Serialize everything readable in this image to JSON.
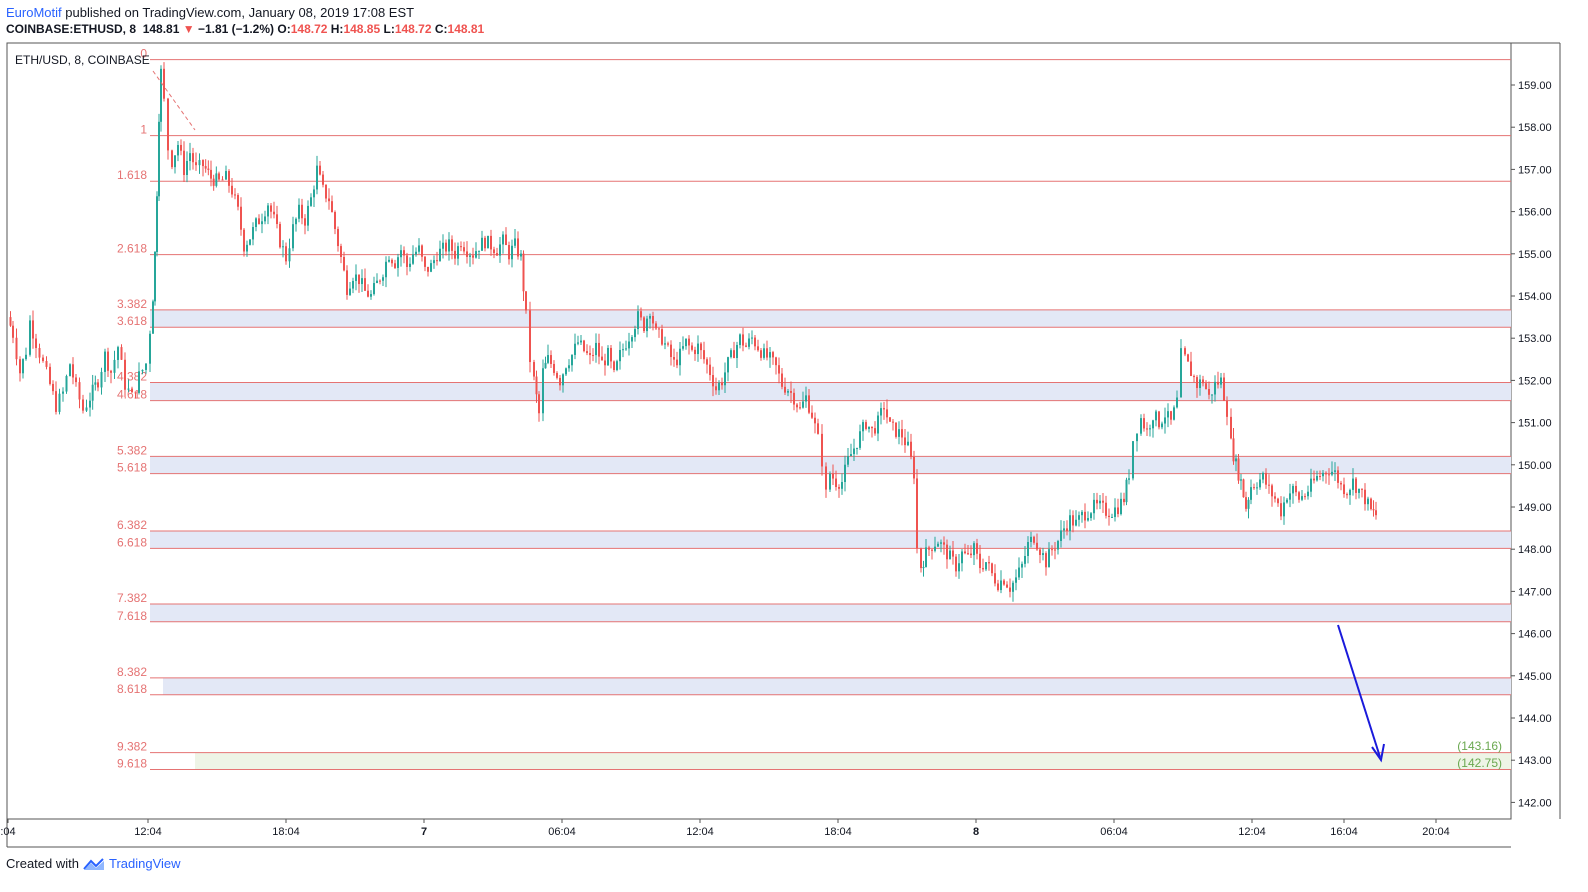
{
  "header": {
    "author": "EuroMotif",
    "published_text": "published on TradingView.com, January 08, 2019 17:08 EST",
    "symbol": "COINBASE:ETHUSD, 8",
    "last_price": "148.81",
    "change_arrow": "▼",
    "change": "−1.81 (−1.2%)",
    "o_label": "O:",
    "o_value": "148.72",
    "h_label": "H:",
    "h_value": "148.85",
    "l_label": "L:",
    "l_value": "148.72",
    "c_label": "C:",
    "c_value": "148.81"
  },
  "footer": {
    "created_with": "Created with",
    "brand": "TradingView"
  },
  "chart_data": {
    "type": "candlestick",
    "legend": "ETH/USD, 8, COINBASE",
    "ylim": [
      141.8,
      159.8
    ],
    "y_ticks": [
      "159.00",
      "158.00",
      "157.00",
      "156.00",
      "155.00",
      "154.00",
      "153.00",
      "152.00",
      "151.00",
      "150.00",
      "149.00",
      "148.00",
      "147.00",
      "146.00",
      "145.00",
      "144.00",
      "143.00",
      "142.00"
    ],
    "x_ticks": [
      ":04",
      "12:04",
      "18:04",
      "7",
      "06:04",
      "12:04",
      "18:04",
      "8",
      "06:04",
      "12:04",
      "16:04",
      "20:04"
    ],
    "fib_levels": [
      {
        "label": "0",
        "value": 159.6
      },
      {
        "label": "1",
        "value": 157.8
      },
      {
        "label": "1.618",
        "value": 156.72
      },
      {
        "label": "2.618",
        "value": 154.98
      },
      {
        "label": "3.382",
        "value": 153.67
      },
      {
        "label": "3.618",
        "value": 153.26
      },
      {
        "label": "4.382",
        "value": 151.95
      },
      {
        "label": "4.618",
        "value": 151.52
      },
      {
        "label": "5.382",
        "value": 150.2
      },
      {
        "label": "5.618",
        "value": 149.79
      },
      {
        "label": "6.382",
        "value": 148.43
      },
      {
        "label": "6.618",
        "value": 148.02
      },
      {
        "label": "7.382",
        "value": 146.7
      },
      {
        "label": "7.618",
        "value": 146.28
      },
      {
        "label": "8.382",
        "value": 144.95
      },
      {
        "label": "8.618",
        "value": 144.55
      },
      {
        "label": "9.382",
        "value": 143.18
      },
      {
        "label": "9.618",
        "value": 142.78
      }
    ],
    "target_labels": [
      "(143.16)",
      "(142.75)"
    ],
    "colors": {
      "up": "#26a69a",
      "down": "#ef5350",
      "fib": "#e57373",
      "zone": "#e3e8f6",
      "target_zone": "#eef4e6",
      "arrow": "#1a1adb",
      "target_text": "#6aa84f"
    },
    "path_points": [
      [
        0,
        153.5
      ],
      [
        5,
        153.1
      ],
      [
        12,
        152.2
      ],
      [
        18,
        152.7
      ],
      [
        22,
        153.4
      ],
      [
        28,
        152.9
      ],
      [
        35,
        152.4
      ],
      [
        42,
        151.9
      ],
      [
        48,
        151.4
      ],
      [
        55,
        151.7
      ],
      [
        62,
        152.4
      ],
      [
        68,
        151.8
      ],
      [
        75,
        151.3
      ],
      [
        82,
        151.6
      ],
      [
        90,
        152.0
      ],
      [
        97,
        152.6
      ],
      [
        103,
        152.2
      ],
      [
        110,
        152.8
      ],
      [
        117,
        151.9
      ],
      [
        124,
        151.6
      ],
      [
        131,
        152.1
      ],
      [
        138,
        152.4
      ],
      [
        142,
        153.2
      ],
      [
        145,
        154.0
      ],
      [
        147,
        155.0
      ],
      [
        149,
        156.5
      ],
      [
        151,
        158.3
      ],
      [
        153,
        159.3
      ],
      [
        156,
        158.6
      ],
      [
        160,
        157.5
      ],
      [
        164,
        157.2
      ],
      [
        170,
        157.6
      ],
      [
        176,
        157.0
      ],
      [
        182,
        157.4
      ],
      [
        188,
        157.0
      ],
      [
        195,
        157.1
      ],
      [
        203,
        156.8
      ],
      [
        211,
        156.7
      ],
      [
        218,
        156.8
      ],
      [
        224,
        156.5
      ],
      [
        230,
        156.0
      ],
      [
        236,
        155.2
      ],
      [
        242,
        155.4
      ],
      [
        248,
        155.7
      ],
      [
        254,
        155.9
      ],
      [
        260,
        156.2
      ],
      [
        266,
        155.8
      ],
      [
        272,
        155.3
      ],
      [
        278,
        154.9
      ],
      [
        285,
        155.6
      ],
      [
        291,
        156.0
      ],
      [
        297,
        155.8
      ],
      [
        303,
        156.3
      ],
      [
        309,
        157.0
      ],
      [
        315,
        156.5
      ],
      [
        321,
        156.3
      ],
      [
        327,
        155.6
      ],
      [
        333,
        154.9
      ],
      [
        339,
        154.2
      ],
      [
        345,
        154.5
      ],
      [
        351,
        154.4
      ],
      [
        357,
        154.1
      ],
      [
        363,
        154.0
      ],
      [
        369,
        154.3
      ],
      [
        375,
        154.6
      ],
      [
        381,
        155.0
      ],
      [
        387,
        154.8
      ],
      [
        393,
        155.1
      ],
      [
        399,
        154.7
      ],
      [
        405,
        155.0
      ],
      [
        411,
        155.1
      ],
      [
        417,
        154.6
      ],
      [
        423,
        154.7
      ],
      [
        429,
        155.0
      ],
      [
        435,
        155.1
      ],
      [
        441,
        155.2
      ],
      [
        447,
        155.0
      ],
      [
        453,
        155.3
      ],
      [
        459,
        155.1
      ],
      [
        465,
        155.0
      ],
      [
        471,
        155.2
      ],
      [
        477,
        155.3
      ],
      [
        483,
        155.2
      ],
      [
        489,
        155.1
      ],
      [
        495,
        155.3
      ],
      [
        501,
        155.0
      ],
      [
        507,
        155.2
      ],
      [
        513,
        154.9
      ],
      [
        518,
        153.5
      ],
      [
        522,
        152.5
      ],
      [
        526,
        152.0
      ],
      [
        531,
        151.2
      ],
      [
        535,
        152.2
      ],
      [
        540,
        152.5
      ],
      [
        546,
        152.3
      ],
      [
        552,
        152.0
      ],
      [
        558,
        152.4
      ],
      [
        564,
        152.6
      ],
      [
        570,
        152.9
      ],
      [
        576,
        152.7
      ],
      [
        582,
        152.5
      ],
      [
        588,
        152.8
      ],
      [
        594,
        152.4
      ],
      [
        600,
        152.6
      ],
      [
        606,
        152.1
      ],
      [
        612,
        152.6
      ],
      [
        618,
        152.9
      ],
      [
        624,
        153.2
      ],
      [
        630,
        153.5
      ],
      [
        636,
        153.3
      ],
      [
        642,
        153.7
      ],
      [
        648,
        153.1
      ],
      [
        654,
        153.0
      ],
      [
        660,
        152.7
      ],
      [
        666,
        152.4
      ],
      [
        672,
        152.6
      ],
      [
        678,
        152.9
      ],
      [
        684,
        152.7
      ],
      [
        690,
        152.8
      ],
      [
        696,
        152.5
      ],
      [
        702,
        152.2
      ],
      [
        708,
        151.8
      ],
      [
        714,
        152.0
      ],
      [
        720,
        152.4
      ],
      [
        726,
        152.7
      ],
      [
        732,
        153.0
      ],
      [
        738,
        152.8
      ],
      [
        744,
        153.0
      ],
      [
        750,
        152.8
      ],
      [
        756,
        152.6
      ],
      [
        762,
        152.5
      ],
      [
        768,
        152.3
      ],
      [
        774,
        151.9
      ],
      [
        780,
        151.8
      ],
      [
        786,
        151.6
      ],
      [
        792,
        151.3
      ],
      [
        798,
        151.6
      ],
      [
        804,
        151.2
      ],
      [
        810,
        150.6
      ],
      [
        814,
        150.1
      ],
      [
        818,
        149.3
      ],
      [
        822,
        149.8
      ],
      [
        828,
        149.6
      ],
      [
        834,
        149.6
      ],
      [
        840,
        150.1
      ],
      [
        846,
        150.4
      ],
      [
        852,
        150.7
      ],
      [
        858,
        151.0
      ],
      [
        864,
        150.8
      ],
      [
        870,
        151.0
      ],
      [
        876,
        151.4
      ],
      [
        882,
        150.9
      ],
      [
        888,
        150.8
      ],
      [
        894,
        150.7
      ],
      [
        900,
        150.4
      ],
      [
        906,
        149.8
      ],
      [
        909,
        148.0
      ],
      [
        913,
        147.6
      ],
      [
        918,
        147.9
      ],
      [
        924,
        148.1
      ],
      [
        930,
        148.2
      ],
      [
        936,
        148.0
      ],
      [
        942,
        147.8
      ],
      [
        948,
        147.6
      ],
      [
        954,
        147.9
      ],
      [
        960,
        147.8
      ],
      [
        966,
        148.0
      ],
      [
        972,
        147.6
      ],
      [
        978,
        147.7
      ],
      [
        984,
        147.4
      ],
      [
        990,
        147.2
      ],
      [
        996,
        147.3
      ],
      [
        1002,
        147.1
      ],
      [
        1008,
        147.3
      ],
      [
        1014,
        147.6
      ],
      [
        1020,
        148.1
      ],
      [
        1026,
        148.3
      ],
      [
        1032,
        148.0
      ],
      [
        1038,
        147.7
      ],
      [
        1044,
        148.0
      ],
      [
        1050,
        148.2
      ],
      [
        1056,
        148.5
      ],
      [
        1062,
        148.7
      ],
      [
        1068,
        148.6
      ],
      [
        1074,
        148.8
      ],
      [
        1080,
        148.9
      ],
      [
        1086,
        149.0
      ],
      [
        1092,
        149.0
      ],
      [
        1098,
        148.9
      ],
      [
        1104,
        148.9
      ],
      [
        1110,
        149.0
      ],
      [
        1116,
        149.2
      ],
      [
        1121,
        149.8
      ],
      [
        1125,
        150.6
      ],
      [
        1129,
        150.9
      ],
      [
        1133,
        151.1
      ],
      [
        1139,
        150.8
      ],
      [
        1145,
        151.2
      ],
      [
        1151,
        151.0
      ],
      [
        1157,
        151.2
      ],
      [
        1163,
        151.0
      ],
      [
        1169,
        151.5
      ],
      [
        1173,
        152.6
      ],
      [
        1177,
        152.5
      ],
      [
        1183,
        152.2
      ],
      [
        1189,
        151.9
      ],
      [
        1195,
        152.0
      ],
      [
        1201,
        151.6
      ],
      [
        1207,
        151.9
      ],
      [
        1213,
        152.0
      ],
      [
        1219,
        151.3
      ],
      [
        1223,
        150.5
      ],
      [
        1228,
        150.0
      ],
      [
        1233,
        149.6
      ],
      [
        1238,
        149.0
      ],
      [
        1243,
        149.5
      ],
      [
        1249,
        149.6
      ],
      [
        1255,
        149.7
      ],
      [
        1261,
        149.4
      ],
      [
        1267,
        149.2
      ],
      [
        1273,
        148.9
      ],
      [
        1279,
        149.3
      ],
      [
        1285,
        149.4
      ],
      [
        1291,
        149.2
      ],
      [
        1297,
        149.3
      ],
      [
        1303,
        149.5
      ],
      [
        1309,
        149.7
      ],
      [
        1315,
        149.8
      ],
      [
        1321,
        149.9
      ],
      [
        1327,
        149.8
      ],
      [
        1333,
        149.5
      ],
      [
        1339,
        149.4
      ],
      [
        1345,
        149.6
      ],
      [
        1351,
        149.4
      ],
      [
        1357,
        149.2
      ],
      [
        1363,
        148.9
      ],
      [
        1368,
        148.81
      ]
    ]
  }
}
